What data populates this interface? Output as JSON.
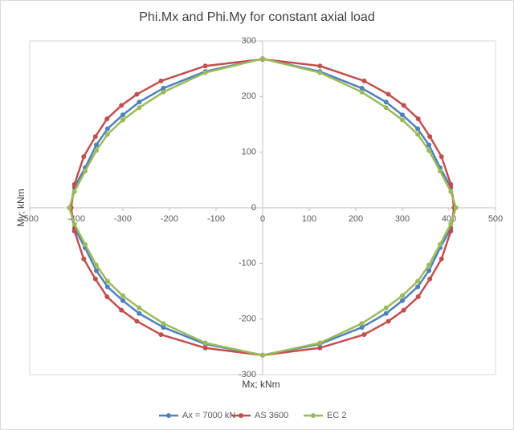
{
  "chart_data": {
    "type": "line",
    "title": "Phi.Mx and Phi.My for constant axial load",
    "x_label": "Mx; kNm",
    "y_label": "My; kNm",
    "xlim": [
      -500,
      500
    ],
    "ylim": [
      -300,
      300
    ],
    "xticks": [
      -500,
      -400,
      -300,
      -200,
      -100,
      0,
      100,
      200,
      300,
      400,
      500
    ],
    "yticks": [
      -300,
      -200,
      -100,
      0,
      100,
      200,
      300
    ],
    "grid": false,
    "legend": "bottom",
    "series": [
      {
        "name": "Ax = 7000 kN",
        "color": "#4f81bd",
        "x": [
          0,
          123,
          213,
          265,
          300,
          333,
          357,
          381,
          404,
          413,
          404,
          381,
          357,
          333,
          300,
          265,
          213,
          123,
          0,
          -123,
          -213,
          -265,
          -300,
          -333,
          -357,
          -381,
          -404,
          -413,
          -404,
          -381,
          -357,
          -333,
          -300,
          -265,
          -213,
          -123,
          0
        ],
        "values": [
          268,
          245,
          215,
          190,
          167,
          142,
          113,
          72,
          37,
          0,
          -37,
          -72,
          -113,
          -142,
          -167,
          -190,
          -215,
          -245,
          -265,
          -245,
          -215,
          -190,
          -167,
          -142,
          -113,
          -72,
          -37,
          0,
          37,
          72,
          113,
          142,
          167,
          190,
          215,
          245,
          268
        ]
      },
      {
        "name": "AS 3600",
        "color": "#c0504d",
        "x": [
          0,
          123,
          218,
          270,
          303,
          334,
          359,
          384,
          404,
          411,
          404,
          384,
          359,
          334,
          303,
          270,
          218,
          123,
          0,
          -123,
          -218,
          -270,
          -303,
          -334,
          -359,
          -384,
          -404,
          -411,
          -404,
          -384,
          -359,
          -334,
          -303,
          -270,
          -218,
          -123,
          0
        ],
        "values": [
          267,
          255,
          228,
          204,
          184,
          160,
          128,
          92,
          42,
          0,
          -42,
          -92,
          -128,
          -160,
          -184,
          -204,
          -228,
          -252,
          -265,
          -252,
          -228,
          -204,
          -184,
          -160,
          -128,
          -92,
          -42,
          0,
          42,
          92,
          128,
          160,
          184,
          204,
          228,
          255,
          267
        ]
      },
      {
        "name": "EC 2",
        "color": "#9bbb59",
        "x": [
          0,
          123,
          213,
          265,
          300,
          333,
          357,
          381,
          404,
          415,
          404,
          381,
          357,
          333,
          300,
          265,
          213,
          123,
          0,
          -123,
          -213,
          -265,
          -300,
          -333,
          -357,
          -381,
          -404,
          -415,
          -404,
          -381,
          -357,
          -333,
          -300,
          -265,
          -213,
          -123,
          0
        ],
        "values": [
          268,
          243,
          208,
          180,
          158,
          132,
          103,
          66,
          29,
          0,
          -29,
          -66,
          -103,
          -132,
          -158,
          -180,
          -208,
          -243,
          -265,
          -243,
          -208,
          -180,
          -158,
          -132,
          -103,
          -66,
          -29,
          0,
          29,
          66,
          103,
          132,
          158,
          180,
          208,
          243,
          268
        ]
      }
    ]
  }
}
